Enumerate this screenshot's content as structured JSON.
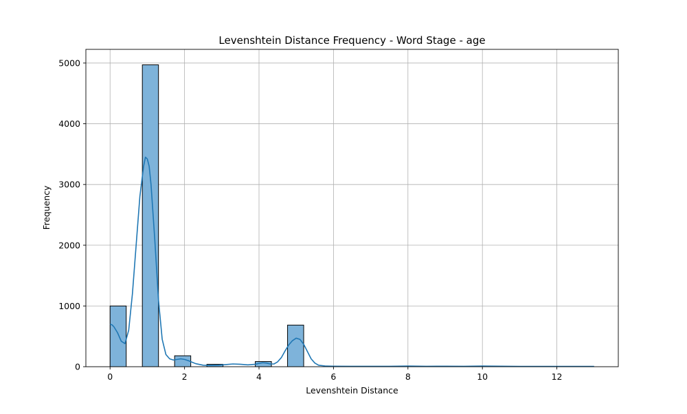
{
  "chart_data": {
    "type": "bar",
    "title": "Levenshtein Distance Frequency - Word Stage - age",
    "xlabel": "Levenshtein Distance",
    "ylabel": "Frequency",
    "xlim": [
      -0.65,
      13.65
    ],
    "ylim": [
      0,
      5225
    ],
    "x_ticks": [
      0,
      2,
      4,
      6,
      8,
      10,
      12
    ],
    "y_ticks": [
      0,
      1000,
      2000,
      3000,
      4000,
      5000
    ],
    "grid": true,
    "bin_width": 0.4333,
    "bins": [
      {
        "x_start": 0.0,
        "x_end": 0.4333,
        "count": 1000
      },
      {
        "x_start": 0.8667,
        "x_end": 1.3,
        "count": 4970
      },
      {
        "x_start": 1.7333,
        "x_end": 2.1667,
        "count": 180
      },
      {
        "x_start": 2.6,
        "x_end": 3.0333,
        "count": 40
      },
      {
        "x_start": 3.9,
        "x_end": 4.3333,
        "count": 85
      },
      {
        "x_start": 4.7667,
        "x_end": 5.2,
        "count": 685
      }
    ],
    "kde": {
      "name": "",
      "x": [
        0,
        0.05,
        0.1,
        0.2,
        0.3,
        0.4,
        0.5,
        0.6,
        0.7,
        0.8,
        0.9,
        0.95,
        1.0,
        1.05,
        1.1,
        1.2,
        1.3,
        1.4,
        1.5,
        1.6,
        1.7,
        1.8,
        1.9,
        2.0,
        2.1,
        2.2,
        2.3,
        2.5,
        2.7,
        2.9,
        3.1,
        3.3,
        3.5,
        3.7,
        3.9,
        4.0,
        4.1,
        4.2,
        4.3,
        4.4,
        4.5,
        4.6,
        4.7,
        4.8,
        4.9,
        5.0,
        5.1,
        5.2,
        5.3,
        5.4,
        5.5,
        5.6,
        5.8,
        6.0,
        6.5,
        7.0,
        7.5,
        8.0,
        8.5,
        9.0,
        9.5,
        10.0,
        10.5,
        11.0,
        11.5,
        12.0,
        12.5,
        13.0
      ],
      "y": [
        700,
        690,
        660,
        560,
        420,
        380,
        600,
        1200,
        2000,
        2800,
        3300,
        3450,
        3420,
        3300,
        3000,
        2100,
        1100,
        450,
        200,
        130,
        110,
        120,
        130,
        120,
        100,
        75,
        50,
        25,
        20,
        25,
        35,
        45,
        40,
        30,
        40,
        55,
        65,
        60,
        45,
        45,
        80,
        150,
        260,
        360,
        430,
        470,
        450,
        370,
        250,
        130,
        60,
        25,
        10,
        8,
        7,
        6,
        6,
        10,
        7,
        8,
        6,
        10,
        8,
        5,
        5,
        5,
        5,
        5
      ]
    },
    "colors": {
      "bar_fill": "#7eb3da",
      "bar_edge": "#000000",
      "kde_line": "#1f77b4",
      "grid": "#b0b0b0"
    }
  }
}
